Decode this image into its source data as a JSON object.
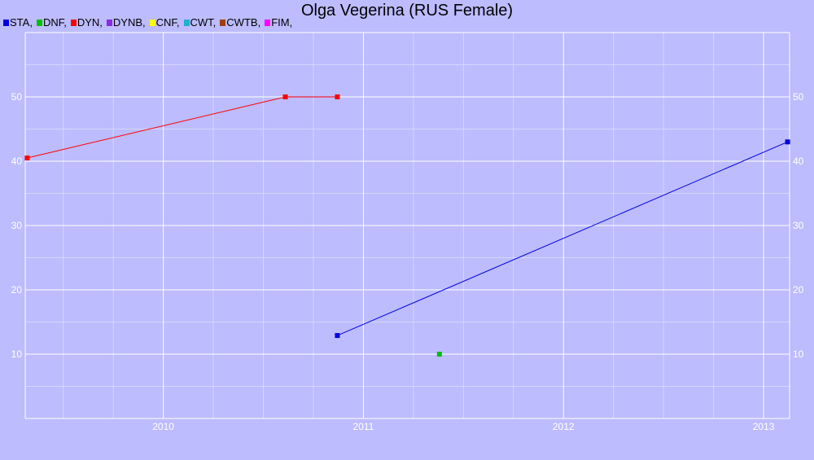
{
  "title": "Olga Vegerina (RUS Female)",
  "legend": [
    {
      "label": "STA,",
      "color": "#0000dd"
    },
    {
      "label": "DNF,",
      "color": "#00c000"
    },
    {
      "label": "DYN,",
      "color": "#ff0000"
    },
    {
      "label": "DYNB,",
      "color": "#8a2be2"
    },
    {
      "label": "CNF,",
      "color": "#ffff00"
    },
    {
      "label": "CWT,",
      "color": "#20b0d0"
    },
    {
      "label": "CWTB,",
      "color": "#a0400a"
    },
    {
      "label": "FIM,",
      "color": "#ff00ff"
    }
  ],
  "chart_data": {
    "type": "line",
    "title": "Olga Vegerina (RUS Female)",
    "xlabel": "",
    "ylabel": "",
    "xlim": [
      2009.31,
      2013.13
    ],
    "ylim": [
      0,
      60
    ],
    "x_ticks": [
      "2010",
      "2011",
      "2012",
      "2013"
    ],
    "y_ticks": [
      "10",
      "20",
      "30",
      "40",
      "50"
    ],
    "grid": true,
    "legend_position": "top-left",
    "series": [
      {
        "name": "STA",
        "color": "#0000dd",
        "points": [
          [
            2010.87,
            12.9
          ],
          [
            2013.12,
            43.0
          ]
        ]
      },
      {
        "name": "DNF",
        "color": "#00c000",
        "points": [
          [
            2011.38,
            10.0
          ]
        ]
      },
      {
        "name": "DYN",
        "color": "#ff0000",
        "points": [
          [
            2009.32,
            40.5
          ],
          [
            2010.61,
            50.0
          ],
          [
            2010.87,
            50.0
          ]
        ]
      }
    ]
  }
}
